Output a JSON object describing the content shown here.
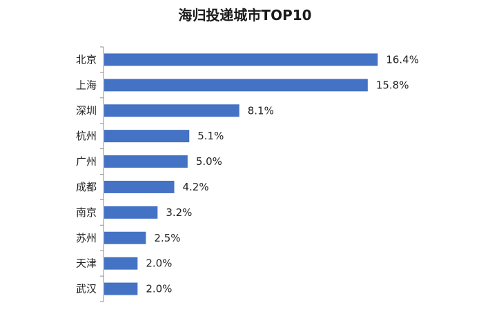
{
  "chart_data": {
    "type": "bar",
    "orientation": "horizontal",
    "title": "海归投递城市TOP10",
    "categories": [
      "北京",
      "上海",
      "深圳",
      "杭州",
      "广州",
      "成都",
      "南京",
      "苏州",
      "天津",
      "武汉"
    ],
    "values": [
      16.4,
      15.8,
      8.1,
      5.1,
      5.0,
      4.2,
      3.2,
      2.5,
      2.0,
      2.0
    ],
    "value_labels": [
      "16.4%",
      "15.8%",
      "8.1%",
      "5.1%",
      "5.0%",
      "4.2%",
      "3.2%",
      "2.5%",
      "2.0%",
      "2.0%"
    ],
    "unit": "%",
    "xlabel": "",
    "ylabel": "",
    "xlim": [
      0,
      18
    ],
    "grid": false,
    "legend": "none",
    "bar_color": "#4472C4"
  }
}
